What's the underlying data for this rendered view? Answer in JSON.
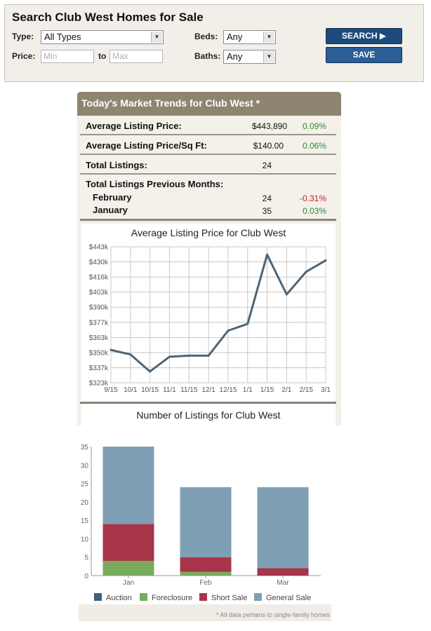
{
  "search": {
    "title": "Search Club West Homes for Sale",
    "type_label": "Type:",
    "type_value": "All Types",
    "price_label": "Price:",
    "min_placeholder": "Min",
    "to_label": "to",
    "max_placeholder": "Max",
    "beds_label": "Beds:",
    "beds_value": "Any",
    "baths_label": "Baths:",
    "baths_value": "Any",
    "search_button": "SEARCH ▶",
    "save_button": "SAVE"
  },
  "trends": {
    "header": "Today's Market Trends for Club West *",
    "avg_price_label": "Average Listing Price:",
    "avg_price_value": "$443,890",
    "avg_price_change": "0.09%",
    "avg_sqft_label": "Average Listing Price/Sq Ft:",
    "avg_sqft_value": "$140.00",
    "avg_sqft_change": "0.06%",
    "total_label": "Total Listings:",
    "total_value": "24",
    "prev_label": "Total Listings Previous Months:",
    "feb_label": "February",
    "feb_value": "24",
    "feb_change": "-0.31%",
    "jan_label": "January",
    "jan_value": "35",
    "jan_change": "0.03%"
  },
  "listings_title": "Number of Listings for Club West",
  "footnote": "* All data pertains to single-family homes",
  "colors": {
    "line": "#4d6577",
    "auction": "#3f5f7a",
    "foreclosure": "#7aab5c",
    "short_sale": "#a8354a",
    "general_sale": "#7f9fb4"
  },
  "chart_data": [
    {
      "type": "line",
      "title": "Average Listing Price for Club West",
      "x": [
        "9/15",
        "10/1",
        "10/15",
        "11/1",
        "11/15",
        "12/1",
        "12/15",
        "1/1",
        "1/15",
        "2/1",
        "2/15",
        "3/1"
      ],
      "y_ticks": [
        "$323k",
        "$337k",
        "$350k",
        "$363k",
        "$377k",
        "$390k",
        "$403k",
        "$416k",
        "$430k",
        "$443k"
      ],
      "ylim": [
        323,
        443
      ],
      "values": [
        352,
        348,
        333,
        346,
        347,
        347,
        369,
        375,
        436,
        401,
        421,
        431
      ],
      "grid": true
    },
    {
      "type": "bar",
      "stacked": true,
      "categories": [
        "Jan",
        "Feb",
        "Mar"
      ],
      "y_ticks": [
        "0",
        "5",
        "10",
        "15",
        "20",
        "25",
        "30",
        "35"
      ],
      "ylim": [
        0,
        35
      ],
      "series": [
        {
          "name": "Auction",
          "values": [
            0,
            0,
            0
          ]
        },
        {
          "name": "Foreclosure",
          "values": [
            4,
            1,
            0
          ]
        },
        {
          "name": "Short Sale",
          "values": [
            10,
            4,
            2
          ]
        },
        {
          "name": "General Sale",
          "values": [
            21,
            19,
            22
          ]
        }
      ],
      "legend": [
        "Auction",
        "Foreclosure",
        "Short Sale",
        "General Sale"
      ]
    }
  ]
}
